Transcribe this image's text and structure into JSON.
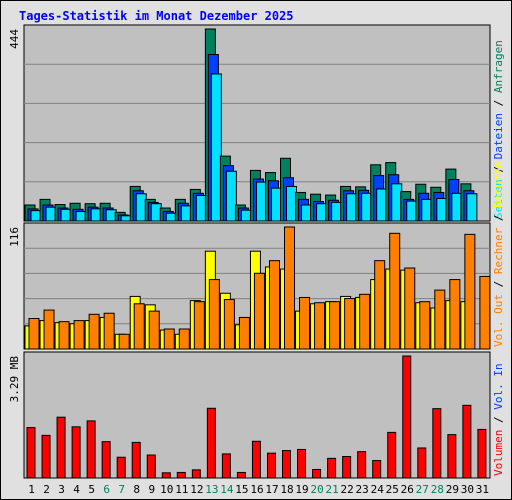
{
  "chart_data": {
    "type": "bar",
    "title": "Tages-Statistik im Monat Dezember 2025",
    "categories": [
      "1",
      "2",
      "3",
      "4",
      "5",
      "6",
      "7",
      "8",
      "9",
      "10",
      "11",
      "12",
      "13",
      "14",
      "15",
      "16",
      "17",
      "18",
      "19",
      "20",
      "21",
      "22",
      "23",
      "24",
      "25",
      "26",
      "27",
      "28",
      "29",
      "30",
      "31"
    ],
    "weekend_days": [
      "6",
      "7",
      "13",
      "14",
      "20",
      "21",
      "27",
      "28"
    ],
    "panels": [
      {
        "name": "hits",
        "y_max": 444,
        "y_max_label": "444",
        "grid": true,
        "series": [
          {
            "name": "Anfragen",
            "color": "#00805c",
            "values": [
              37,
              50,
              38,
              41,
              40,
              41,
              20,
              80,
              50,
              30,
              50,
              73,
              444,
              150,
              37,
              117,
              112,
              145,
              66,
              62,
              60,
              80,
              79,
              130,
              135,
              68,
              85,
              78,
              120,
              86,
              0
            ]
          },
          {
            "name": "Dateien",
            "color": "#0040ff",
            "values": [
              28,
              37,
              30,
              27,
              32,
              30,
              14,
              70,
              43,
              22,
              41,
              64,
              385,
              128,
              30,
              97,
              93,
              100,
              50,
              45,
              48,
              70,
              71,
              105,
              107,
              50,
              64,
              66,
              96,
              70,
              0
            ]
          },
          {
            "name": "Seiten",
            "color": "#00e0ff",
            "values": [
              24,
              32,
              27,
              22,
              28,
              26,
              12,
              63,
              40,
              18,
              35,
              59,
              340,
              115,
              25,
              90,
              76,
              80,
              37,
              40,
              43,
              63,
              64,
              74,
              86,
              46,
              50,
              52,
              64,
              63,
              0
            ]
          }
        ]
      },
      {
        "name": "visits",
        "y_max": 116,
        "y_max_label": "116",
        "grid": true,
        "series": [
          {
            "name": "Besuche",
            "color": "#ffff00",
            "values": [
              22,
              27,
              25,
              24,
              27,
              30,
              14,
              50,
              42,
              18,
              14,
              46,
              93,
              53,
              23,
              93,
              78,
              76,
              36,
              43,
              45,
              50,
              49,
              66,
              76,
              75,
              44,
              39,
              46,
              45,
              0
            ]
          },
          {
            "name": "Rechner",
            "color": "#ff8000",
            "values": [
              29,
              37,
              26,
              27,
              33,
              34,
              14,
              43,
              36,
              19,
              19,
              45,
              66,
              47,
              30,
              72,
              84,
              116,
              49,
              44,
              45,
              48,
              52,
              84,
              110,
              77,
              45,
              56,
              66,
              109,
              69
            ]
          }
        ]
      }
    ],
    "volume": {
      "name": "Volumen",
      "unit": "MB",
      "y_max": 3.29,
      "y_max_label": "3.29 MB",
      "grid": false,
      "color": "#ff0000",
      "values": [
        1.36,
        1.15,
        1.64,
        1.38,
        1.54,
        0.98,
        0.56,
        0.96,
        0.62,
        0.14,
        0.15,
        0.22,
        1.88,
        0.65,
        0.15,
        0.99,
        0.67,
        0.74,
        0.77,
        0.23,
        0.53,
        0.58,
        0.71,
        0.47,
        1.23,
        3.29,
        0.81,
        1.87,
        1.17,
        1.96,
        1.31
      ]
    },
    "legend": {
      "hits": [
        "Anfragen",
        "Dateien",
        "Seiten"
      ],
      "visits": [
        "Besuche",
        "Rechner",
        "Vol. Out"
      ],
      "volume": [
        "Vol. In",
        "Volumen"
      ],
      "placement": "right, vertical"
    },
    "colors": {
      "background": "#c0c0c0",
      "page": "#e0e0e0",
      "title": "#0000ff",
      "weekday_label": "#000000",
      "weekend_label": "#00805c",
      "vol_out": "#ff8000",
      "vol_in": "#0040ff"
    }
  }
}
